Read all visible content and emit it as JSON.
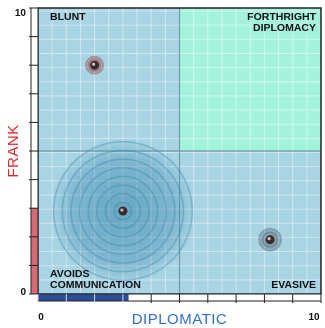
{
  "chart_data": {
    "type": "scatter",
    "title": "",
    "xlabel": "DIPLOMATIC",
    "ylabel": "FRANK",
    "xlim": [
      0,
      10
    ],
    "ylim": [
      0,
      10
    ],
    "x_tick_labels": [
      "0",
      "10"
    ],
    "y_tick_labels": [
      "10",
      "0"
    ],
    "grid": true,
    "quadrants": [
      {
        "name": "top-left",
        "label": [
          "BLUNT"
        ],
        "color": "#a8d4e4"
      },
      {
        "name": "top-right",
        "label": [
          "FORTHRIGHT",
          "DIPLOMACY"
        ],
        "color": "#a3f2dc"
      },
      {
        "name": "bottom-left",
        "label": [
          "AVOIDS",
          "COMMUNICATION"
        ],
        "color": "#a8d4e4"
      },
      {
        "name": "bottom-right",
        "label": [
          "EVASIVE"
        ],
        "color": "#a8d4e4"
      }
    ],
    "points": [
      {
        "x": 2.0,
        "y": 8.0,
        "spread": 0.35,
        "color": "#9c3a3a"
      },
      {
        "x": 3.0,
        "y": 2.9,
        "spread": 2.6,
        "color": "#2f7fa6"
      },
      {
        "x": 8.2,
        "y": 1.9,
        "spread": 0.45,
        "color": "#4a5a66"
      }
    ],
    "axis_bars": {
      "x": {
        "value": 3.2,
        "color": "#2a4f96"
      },
      "y": {
        "value": 3.0,
        "color": "#d86a76"
      }
    }
  }
}
